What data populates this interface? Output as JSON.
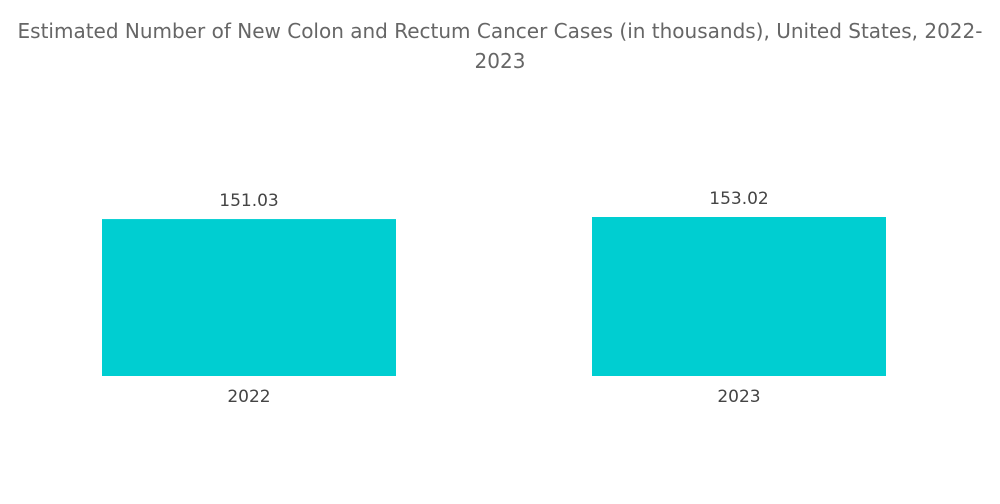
{
  "chart_data": {
    "type": "bar",
    "title": "Estimated Number of New Colon and Rectum Cancer Cases (in thousands), United States, 2022-2023",
    "categories": [
      "2022",
      "2023"
    ],
    "values": [
      151.03,
      153.02
    ],
    "color": "#00ced1"
  }
}
